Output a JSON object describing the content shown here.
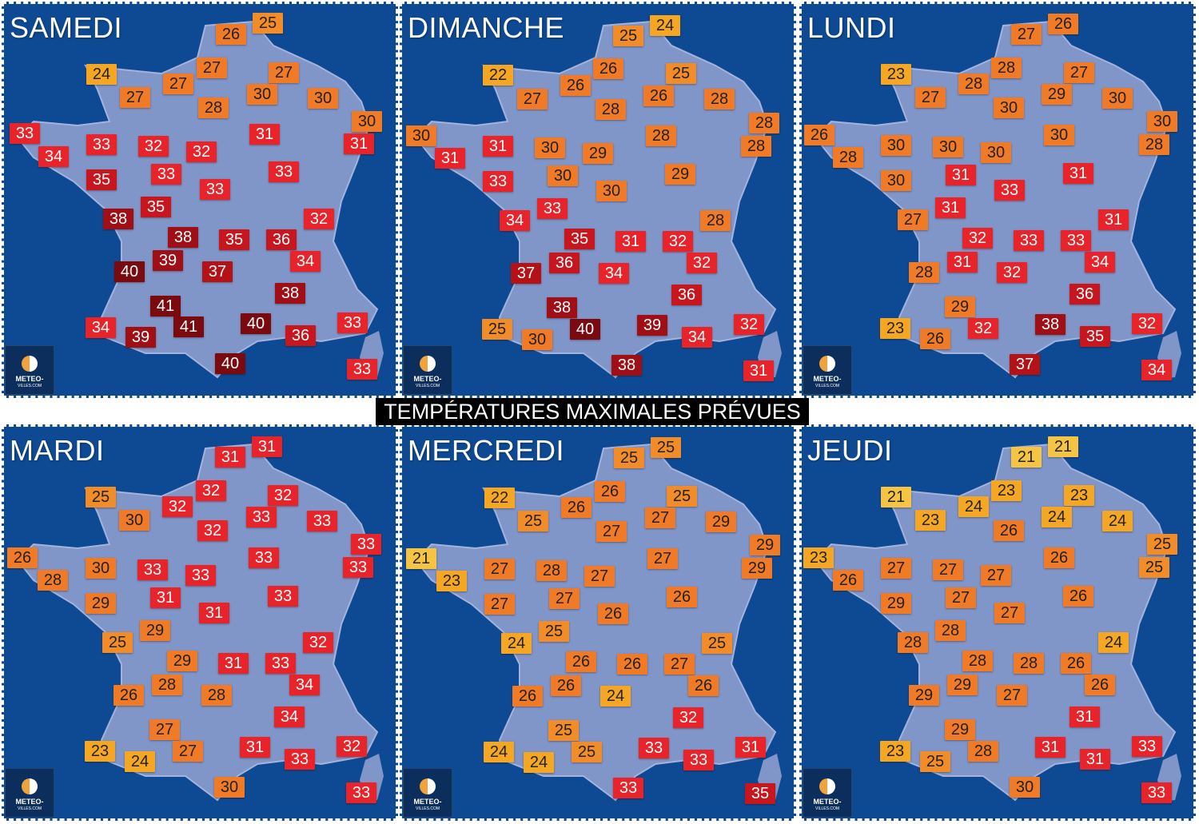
{
  "title": "TEMPÉRATURES MAXIMALES PRÉVUES",
  "logo": {
    "line1": "METEO-",
    "line2": "VILLES.COM"
  },
  "scale_colors": {
    "21": "#f5c443",
    "22": "#f5a623",
    "23": "#f5a623",
    "24": "#f5a623",
    "25": "#f28c28",
    "26": "#f07a25",
    "27": "#f07a25",
    "28": "#f07a25",
    "29": "#f07a25",
    "30": "#f07a25",
    "31": "#e8232a",
    "32": "#e8232a",
    "33": "#e8232a",
    "34": "#e8232a",
    "35": "#c8161e",
    "36": "#c8161e",
    "37": "#b51218",
    "38": "#a00f15",
    "39": "#a00f15",
    "40": "#7a0a0e",
    "41": "#7a0a0e"
  },
  "days": [
    {
      "name": "SAMEDI",
      "temps": [
        [
          333,
          27,
          25
        ],
        [
          287,
          41,
          26
        ],
        [
          125,
          91,
          24
        ],
        [
          263,
          83,
          27
        ],
        [
          353,
          89,
          27
        ],
        [
          221,
          103,
          27
        ],
        [
          167,
          120,
          27
        ],
        [
          326,
          116,
          30
        ],
        [
          402,
          121,
          30
        ],
        [
          265,
          133,
          28
        ],
        [
          457,
          150,
          30
        ],
        [
          29,
          165,
          33
        ],
        [
          447,
          178,
          31
        ],
        [
          329,
          166,
          31
        ],
        [
          65,
          194,
          34
        ],
        [
          125,
          179,
          33
        ],
        [
          190,
          181,
          32
        ],
        [
          250,
          188,
          32
        ],
        [
          206,
          216,
          33
        ],
        [
          353,
          213,
          33
        ],
        [
          125,
          223,
          35
        ],
        [
          267,
          235,
          33
        ],
        [
          193,
          257,
          35
        ],
        [
          146,
          272,
          38
        ],
        [
          397,
          272,
          32
        ],
        [
          227,
          295,
          38
        ],
        [
          291,
          298,
          35
        ],
        [
          350,
          298,
          36
        ],
        [
          208,
          324,
          39
        ],
        [
          380,
          325,
          34
        ],
        [
          160,
          338,
          40
        ],
        [
          270,
          338,
          37
        ],
        [
          361,
          365,
          38
        ],
        [
          205,
          381,
          41
        ],
        [
          124,
          408,
          34
        ],
        [
          174,
          420,
          39
        ],
        [
          234,
          407,
          41
        ],
        [
          318,
          403,
          40
        ],
        [
          439,
          402,
          33
        ],
        [
          374,
          418,
          36
        ],
        [
          286,
          453,
          40
        ],
        [
          451,
          460,
          33
        ]
      ]
    },
    {
      "name": "DIMANCHE",
      "temps": [
        [
          332,
          30,
          24
        ],
        [
          286,
          43,
          25
        ],
        [
          123,
          92,
          22
        ],
        [
          261,
          84,
          26
        ],
        [
          352,
          90,
          25
        ],
        [
          220,
          105,
          26
        ],
        [
          166,
          122,
          27
        ],
        [
          324,
          118,
          26
        ],
        [
          400,
          122,
          28
        ],
        [
          264,
          135,
          28
        ],
        [
          456,
          152,
          28
        ],
        [
          27,
          168,
          30
        ],
        [
          446,
          181,
          28
        ],
        [
          327,
          168,
          28
        ],
        [
          63,
          196,
          31
        ],
        [
          123,
          181,
          31
        ],
        [
          188,
          183,
          30
        ],
        [
          248,
          190,
          29
        ],
        [
          204,
          218,
          30
        ],
        [
          351,
          216,
          29
        ],
        [
          123,
          225,
          33
        ],
        [
          265,
          237,
          30
        ],
        [
          191,
          259,
          33
        ],
        [
          144,
          274,
          34
        ],
        [
          395,
          274,
          28
        ],
        [
          225,
          297,
          35
        ],
        [
          289,
          300,
          31
        ],
        [
          348,
          300,
          32
        ],
        [
          206,
          327,
          36
        ],
        [
          378,
          327,
          32
        ],
        [
          158,
          340,
          37
        ],
        [
          268,
          340,
          34
        ],
        [
          359,
          367,
          36
        ],
        [
          203,
          383,
          38
        ],
        [
          122,
          410,
          25
        ],
        [
          172,
          423,
          30
        ],
        [
          232,
          410,
          40
        ],
        [
          316,
          405,
          39
        ],
        [
          437,
          404,
          32
        ],
        [
          372,
          420,
          34
        ],
        [
          284,
          455,
          38
        ],
        [
          449,
          462,
          31
        ]
      ]
    },
    {
      "name": "LUNDI",
      "temps": [
        [
          330,
          28,
          26
        ],
        [
          284,
          41,
          27
        ],
        [
          121,
          91,
          23
        ],
        [
          259,
          83,
          28
        ],
        [
          350,
          89,
          27
        ],
        [
          218,
          103,
          28
        ],
        [
          164,
          120,
          27
        ],
        [
          322,
          116,
          29
        ],
        [
          398,
          121,
          30
        ],
        [
          262,
          133,
          30
        ],
        [
          454,
          150,
          30
        ],
        [
          25,
          167,
          26
        ],
        [
          444,
          179,
          28
        ],
        [
          325,
          167,
          30
        ],
        [
          61,
          195,
          28
        ],
        [
          121,
          180,
          30
        ],
        [
          186,
          182,
          30
        ],
        [
          246,
          189,
          30
        ],
        [
          202,
          217,
          31
        ],
        [
          349,
          215,
          31
        ],
        [
          121,
          224,
          30
        ],
        [
          263,
          236,
          33
        ],
        [
          189,
          258,
          31
        ],
        [
          142,
          273,
          27
        ],
        [
          393,
          273,
          31
        ],
        [
          223,
          296,
          32
        ],
        [
          287,
          299,
          33
        ],
        [
          346,
          299,
          33
        ],
        [
          204,
          326,
          31
        ],
        [
          376,
          326,
          34
        ],
        [
          156,
          339,
          28
        ],
        [
          266,
          339,
          32
        ],
        [
          357,
          366,
          36
        ],
        [
          201,
          382,
          29
        ],
        [
          120,
          409,
          23
        ],
        [
          170,
          422,
          26
        ],
        [
          230,
          409,
          32
        ],
        [
          314,
          404,
          38
        ],
        [
          435,
          403,
          32
        ],
        [
          370,
          419,
          35
        ],
        [
          282,
          454,
          37
        ],
        [
          447,
          461,
          34
        ]
      ]
    },
    {
      "name": "MARDI",
      "temps": [
        [
          332,
          28,
          31
        ],
        [
          286,
          41,
          31
        ],
        [
          124,
          91,
          25
        ],
        [
          262,
          83,
          32
        ],
        [
          352,
          89,
          32
        ],
        [
          220,
          103,
          32
        ],
        [
          166,
          120,
          30
        ],
        [
          325,
          116,
          33
        ],
        [
          401,
          121,
          33
        ],
        [
          264,
          133,
          32
        ],
        [
          456,
          150,
          33
        ],
        [
          26,
          167,
          26
        ],
        [
          446,
          179,
          33
        ],
        [
          328,
          167,
          33
        ],
        [
          64,
          195,
          28
        ],
        [
          124,
          180,
          30
        ],
        [
          189,
          182,
          33
        ],
        [
          249,
          189,
          33
        ],
        [
          205,
          217,
          31
        ],
        [
          352,
          215,
          33
        ],
        [
          124,
          224,
          29
        ],
        [
          266,
          236,
          31
        ],
        [
          192,
          258,
          29
        ],
        [
          145,
          273,
          25
        ],
        [
          396,
          273,
          32
        ],
        [
          226,
          296,
          29
        ],
        [
          290,
          299,
          31
        ],
        [
          349,
          299,
          33
        ],
        [
          207,
          326,
          28
        ],
        [
          379,
          326,
          34
        ],
        [
          159,
          339,
          26
        ],
        [
          269,
          339,
          28
        ],
        [
          360,
          366,
          34
        ],
        [
          204,
          382,
          27
        ],
        [
          123,
          409,
          23
        ],
        [
          173,
          422,
          24
        ],
        [
          233,
          409,
          27
        ],
        [
          317,
          404,
          31
        ],
        [
          438,
          403,
          32
        ],
        [
          373,
          419,
          33
        ],
        [
          285,
          454,
          30
        ],
        [
          450,
          461,
          33
        ]
      ]
    },
    {
      "name": "MERCREDI",
      "temps": [
        [
          333,
          29,
          25
        ],
        [
          287,
          42,
          25
        ],
        [
          125,
          92,
          22
        ],
        [
          263,
          84,
          26
        ],
        [
          353,
          90,
          25
        ],
        [
          221,
          104,
          26
        ],
        [
          167,
          121,
          25
        ],
        [
          326,
          117,
          27
        ],
        [
          402,
          122,
          29
        ],
        [
          265,
          134,
          27
        ],
        [
          457,
          151,
          29
        ],
        [
          27,
          168,
          21
        ],
        [
          447,
          180,
          29
        ],
        [
          329,
          168,
          27
        ],
        [
          65,
          196,
          23
        ],
        [
          125,
          181,
          27
        ],
        [
          190,
          183,
          28
        ],
        [
          250,
          190,
          27
        ],
        [
          206,
          218,
          27
        ],
        [
          353,
          216,
          26
        ],
        [
          125,
          225,
          27
        ],
        [
          267,
          237,
          26
        ],
        [
          193,
          259,
          25
        ],
        [
          146,
          274,
          24
        ],
        [
          397,
          274,
          25
        ],
        [
          227,
          297,
          26
        ],
        [
          291,
          300,
          26
        ],
        [
          350,
          300,
          27
        ],
        [
          208,
          327,
          26
        ],
        [
          380,
          327,
          26
        ],
        [
          160,
          340,
          26
        ],
        [
          270,
          340,
          24
        ],
        [
          361,
          367,
          32
        ],
        [
          205,
          383,
          25
        ],
        [
          124,
          410,
          24
        ],
        [
          174,
          423,
          24
        ],
        [
          234,
          410,
          25
        ],
        [
          318,
          405,
          33
        ],
        [
          439,
          404,
          31
        ],
        [
          374,
          420,
          33
        ],
        [
          286,
          455,
          33
        ],
        [
          451,
          462,
          35
        ]
      ]
    },
    {
      "name": "JEUDI",
      "temps": [
        [
          330,
          28,
          21
        ],
        [
          284,
          41,
          21
        ],
        [
          121,
          91,
          21
        ],
        [
          259,
          83,
          23
        ],
        [
          350,
          89,
          23
        ],
        [
          218,
          103,
          24
        ],
        [
          164,
          120,
          23
        ],
        [
          322,
          116,
          24
        ],
        [
          398,
          121,
          24
        ],
        [
          262,
          133,
          26
        ],
        [
          454,
          150,
          25
        ],
        [
          24,
          167,
          23
        ],
        [
          444,
          179,
          25
        ],
        [
          325,
          167,
          26
        ],
        [
          61,
          195,
          26
        ],
        [
          121,
          180,
          27
        ],
        [
          186,
          182,
          27
        ],
        [
          246,
          189,
          27
        ],
        [
          202,
          217,
          27
        ],
        [
          349,
          215,
          26
        ],
        [
          121,
          224,
          29
        ],
        [
          263,
          236,
          27
        ],
        [
          189,
          258,
          28
        ],
        [
          142,
          273,
          28
        ],
        [
          393,
          273,
          24
        ],
        [
          223,
          296,
          28
        ],
        [
          287,
          299,
          28
        ],
        [
          346,
          299,
          26
        ],
        [
          204,
          326,
          29
        ],
        [
          376,
          326,
          26
        ],
        [
          156,
          339,
          29
        ],
        [
          266,
          339,
          27
        ],
        [
          357,
          366,
          31
        ],
        [
          201,
          382,
          29
        ],
        [
          120,
          409,
          23
        ],
        [
          170,
          422,
          25
        ],
        [
          230,
          409,
          28
        ],
        [
          314,
          404,
          31
        ],
        [
          435,
          403,
          33
        ],
        [
          370,
          419,
          31
        ],
        [
          282,
          454,
          30
        ],
        [
          447,
          461,
          33
        ]
      ]
    }
  ]
}
